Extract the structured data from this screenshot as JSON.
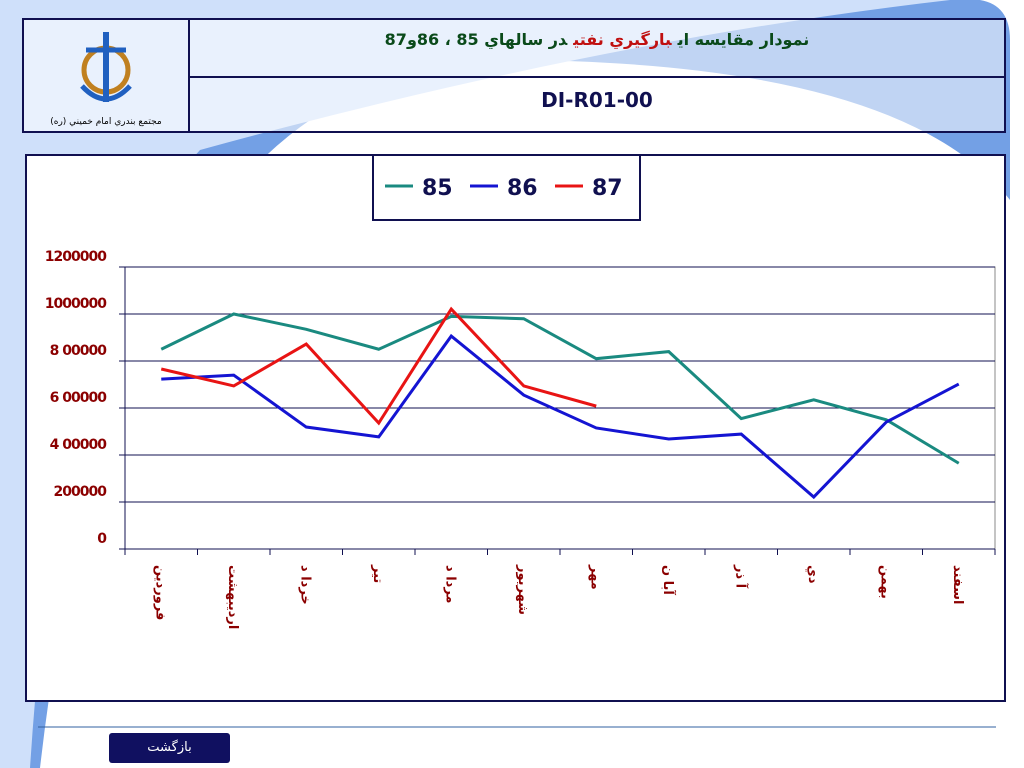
{
  "header": {
    "title_parts": [
      "نمودار مقايسه اي",
      "بارگيري نفتي",
      "در سالهاي 85 ، 86و87"
    ],
    "code": "DI-R01-00",
    "org": "مجتمع بندري امام خميني (ره)"
  },
  "button": "بازگشت",
  "chart_data": {
    "type": "line",
    "categories": [
      "فروردين",
      "ارديبهشت",
      "خردا د",
      "تير",
      "مردا د",
      "شهريور",
      "مهر",
      "آبا ن",
      "آ ذر",
      "دي",
      "بهمن",
      "اسفند"
    ],
    "series": [
      {
        "name": "85",
        "color": "#1a8a80",
        "values": [
          850000,
          1000000,
          935000,
          850000,
          990000,
          980000,
          810000,
          840000,
          555000,
          635000,
          550000,
          365000
        ]
      },
      {
        "name": "86",
        "color": "#1414d2",
        "values": [
          723000,
          740000,
          519000,
          477000,
          906000,
          655000,
          515000,
          468000,
          489000,
          221000,
          540000,
          702000
        ]
      },
      {
        "name": "87",
        "color": "#e81414",
        "values": [
          766000,
          694000,
          872000,
          536000,
          1021000,
          694000,
          608000,
          null,
          null,
          null,
          null,
          null
        ]
      }
    ],
    "ylim": [
      0,
      1200000
    ],
    "yticks": [
      0,
      200000,
      {
        "value": 400000,
        "label": "4 00000"
      },
      {
        "value": 600000,
        "label": "6 00000"
      },
      {
        "value": 800000,
        "label": "8 00000"
      },
      1000000,
      1200000
    ],
    "grid": true,
    "legend": "top"
  }
}
